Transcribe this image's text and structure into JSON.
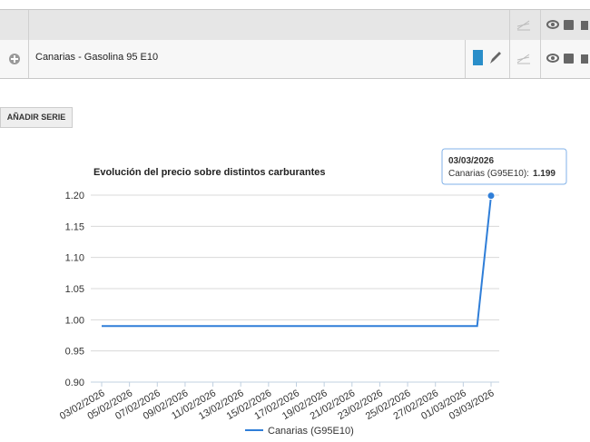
{
  "table": {
    "rows": [
      {
        "label": "Canarias - Gasolina 95 E10"
      }
    ]
  },
  "button": {
    "label": "AÑADIR SERIE"
  },
  "chart_data": {
    "type": "line",
    "title": "Evolución del precio sobre distintos carburantes",
    "categories": [
      "03/02/2026",
      null,
      "05/02/2026",
      null,
      "07/02/2026",
      null,
      "09/02/2026",
      null,
      "11/02/2026",
      null,
      "13/02/2026",
      null,
      "15/02/2026",
      null,
      "17/02/2026",
      null,
      "19/02/2026",
      null,
      "21/02/2026",
      null,
      "23/02/2026",
      null,
      "25/02/2026",
      null,
      "27/02/2026",
      null,
      "01/03/2026",
      null,
      "03/03/2026"
    ],
    "series": [
      {
        "name": "Canarias (G95E10)",
        "color": "#2f7ed8",
        "values": [
          0.99,
          0.99,
          0.99,
          0.99,
          0.99,
          0.99,
          0.99,
          0.99,
          0.99,
          0.99,
          0.99,
          0.99,
          0.99,
          0.99,
          0.99,
          0.99,
          0.99,
          0.99,
          0.99,
          0.99,
          0.99,
          0.99,
          0.99,
          0.99,
          0.99,
          0.99,
          0.99,
          0.99,
          1.199
        ]
      }
    ],
    "ylim": [
      0.9,
      1.2
    ],
    "yticks": [
      {
        "value": 0.9,
        "label": "0.90"
      },
      0.95,
      {
        "value": 1.0,
        "label": "1.00"
      },
      1.05,
      {
        "value": 1.1,
        "label": "1.10"
      },
      1.15,
      {
        "value": 1.2,
        "label": "1.20"
      }
    ],
    "grid": true,
    "tooltip": {
      "label": "Canarias (G95E10):"
    }
  }
}
